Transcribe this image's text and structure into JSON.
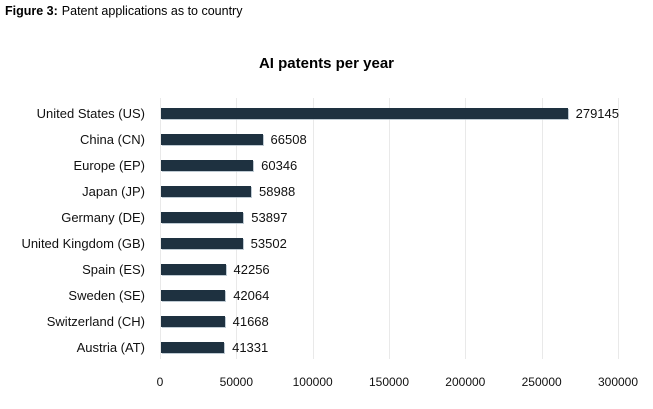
{
  "figure_caption": {
    "label": "Figure 3:",
    "text": "Patent applications as to country"
  },
  "chart_data": {
    "type": "bar",
    "orientation": "horizontal",
    "title": "AI patents per year",
    "categories": [
      "United States (US)",
      "China (CN)",
      "Europe (EP)",
      "Japan (JP)",
      "Germany (DE)",
      "United Kingdom (GB)",
      "Spain (ES)",
      "Sweden (SE)",
      "Switzerland (CH)",
      "Austria (AT)"
    ],
    "values": [
      279145,
      66508,
      60346,
      58988,
      53897,
      53502,
      42256,
      42064,
      41668,
      41331
    ],
    "value_labels": [
      "279145",
      "66508",
      "60346",
      "58988",
      "53897",
      "53502",
      "42256",
      "42064",
      "41668",
      "41331"
    ],
    "xlabel": "",
    "ylabel": "",
    "xlim": [
      0,
      300000
    ],
    "xticks": [
      0,
      50000,
      100000,
      150000,
      200000,
      250000,
      300000
    ],
    "xtick_labels": [
      "0",
      "50000",
      "100000",
      "150000",
      "200000",
      "250000",
      "300000"
    ],
    "grid": "vertical",
    "legend": "none",
    "bar_color": "#1e3140",
    "gridline_color": "#e9e9e9",
    "background_color": "#ffffff"
  }
}
